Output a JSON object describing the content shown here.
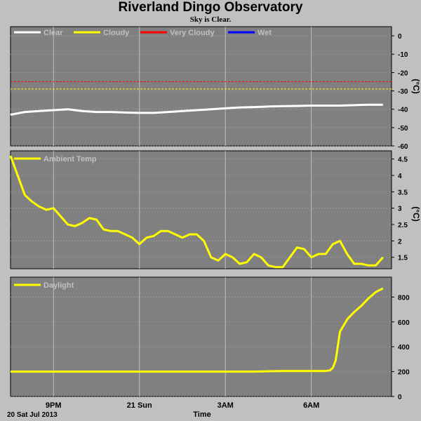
{
  "title": "Riverland Dingo Observatory",
  "subtitle": "Sky is Clear.",
  "bottom": {
    "date_label": "20 Sat Jul 2013",
    "x_axis_label": "Time",
    "time_ticks": [
      "9PM",
      "21 Sun",
      "3AM",
      "6AM"
    ]
  },
  "colors": {
    "plot_bg": "#808080",
    "grid": "#c0c0c0",
    "clear": "#ffffff",
    "cloudy": "#ffff00",
    "very_cloudy": "#ff0000",
    "wet": "#0000ff",
    "ambient": "#ffff00",
    "daylight": "#ffff00"
  },
  "chart_data": [
    {
      "type": "line",
      "name": "sky",
      "legend": [
        "Clear",
        "Cloudy",
        "Very Cloudy",
        "Wet"
      ],
      "unit": "(°C)",
      "y_ticks": [
        0,
        -10,
        -20,
        -30,
        -40,
        -50,
        -60
      ],
      "ylim": [
        -60,
        5
      ],
      "thresholds": {
        "very_cloudy": -25,
        "cloudy": -29
      },
      "series": [
        {
          "name": "Clear",
          "x": [
            19.5,
            20.0,
            20.5,
            21.0,
            21.5,
            22.0,
            22.5,
            23.0,
            23.5,
            24.0,
            24.5,
            25.0,
            25.5,
            26.0,
            26.5,
            27.0,
            27.5,
            28.0,
            28.5,
            29.0,
            29.5,
            30.0,
            30.5,
            31.0,
            31.5,
            32.0,
            32.5
          ],
          "values": [
            -43,
            -41.5,
            -41,
            -40.5,
            -40,
            -41,
            -41.5,
            -41.5,
            -41.8,
            -42,
            -42,
            -41.5,
            -41,
            -40.5,
            -40,
            -39.5,
            -39,
            -38.8,
            -38.5,
            -38.3,
            -38.2,
            -38,
            -38,
            -38,
            -37.8,
            -37.5,
            -37.5
          ]
        }
      ]
    },
    {
      "type": "line",
      "name": "ambient",
      "legend": [
        "Ambient Temp"
      ],
      "unit": "(°C)",
      "y_ticks": [
        1.5,
        2.0,
        2.5,
        3.0,
        3.5,
        4.0,
        4.5
      ],
      "ylim": [
        1.15,
        4.75
      ],
      "series": [
        {
          "name": "Ambient Temp",
          "x": [
            19.5,
            19.75,
            20.0,
            20.25,
            20.5,
            20.75,
            21.0,
            21.25,
            21.5,
            21.75,
            22.0,
            22.25,
            22.5,
            22.75,
            23.0,
            23.25,
            23.5,
            23.75,
            24.0,
            24.25,
            24.5,
            24.75,
            25.0,
            25.25,
            25.5,
            25.75,
            26.0,
            26.25,
            26.5,
            26.75,
            27.0,
            27.25,
            27.5,
            27.75,
            28.0,
            28.25,
            28.5,
            28.75,
            29.0,
            29.25,
            29.5,
            29.75,
            30.0,
            30.25,
            30.5,
            30.75,
            31.0,
            31.25,
            31.5,
            31.75,
            32.0,
            32.25,
            32.5
          ],
          "values": [
            4.6,
            4.0,
            3.4,
            3.2,
            3.05,
            2.95,
            3.0,
            2.75,
            2.5,
            2.45,
            2.55,
            2.7,
            2.65,
            2.35,
            2.3,
            2.3,
            2.2,
            2.1,
            1.9,
            2.1,
            2.15,
            2.3,
            2.3,
            2.2,
            2.1,
            2.2,
            2.2,
            2.0,
            1.5,
            1.4,
            1.6,
            1.5,
            1.3,
            1.35,
            1.6,
            1.5,
            1.25,
            1.2,
            1.2,
            1.5,
            1.8,
            1.75,
            1.5,
            1.6,
            1.6,
            1.9,
            2.0,
            1.6,
            1.3,
            1.3,
            1.25,
            1.25,
            1.5
          ]
        }
      ]
    },
    {
      "type": "line",
      "name": "daylight",
      "legend": [
        "Daylight"
      ],
      "unit": "",
      "y_ticks": [
        0,
        200,
        400,
        600,
        800
      ],
      "ylim": [
        0,
        960
      ],
      "series": [
        {
          "name": "Daylight",
          "x": [
            19.5,
            20.0,
            21.0,
            22.0,
            23.0,
            24.0,
            25.0,
            26.0,
            27.0,
            28.0,
            29.0,
            29.5,
            30.0,
            30.25,
            30.5,
            30.65,
            30.75,
            30.85,
            31.0,
            31.25,
            31.5,
            31.75,
            32.0,
            32.25,
            32.5
          ],
          "values": [
            200,
            200,
            200,
            200,
            200,
            200,
            200,
            200,
            200,
            200,
            205,
            205,
            205,
            205,
            205,
            210,
            230,
            290,
            520,
            620,
            680,
            730,
            790,
            840,
            870
          ]
        }
      ]
    }
  ]
}
